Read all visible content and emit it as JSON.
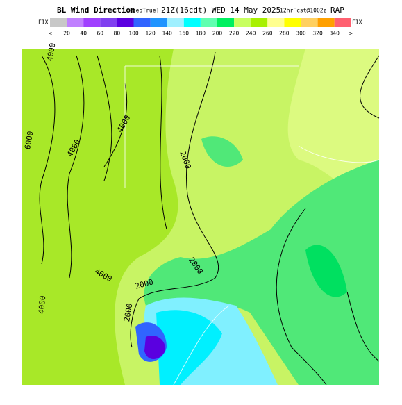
{
  "header": {
    "title": "BL Wind Direction",
    "units": "[degTrue]",
    "time": "21Z(16cdt) WED 14 May 2025",
    "forecast": "12hrFcst@1002z",
    "model": "RAP"
  },
  "colorbar": {
    "left_label": "FIX",
    "right_label": "FIX",
    "left_arrow": "<",
    "right_arrow": ">",
    "ticks": [
      20,
      40,
      60,
      80,
      100,
      120,
      140,
      160,
      180,
      200,
      220,
      240,
      260,
      280,
      300,
      320,
      340
    ],
    "colors": [
      "#c8c8c8",
      "#c080ff",
      "#a040ff",
      "#8040f0",
      "#5a00e0",
      "#3064ff",
      "#2094ff",
      "#a0f0ff",
      "#00ffff",
      "#60ffb0",
      "#00f060",
      "#c8ff60",
      "#a8f000",
      "#ffff90",
      "#ffff00",
      "#ffd060",
      "#ffa000",
      "#ff6070"
    ]
  },
  "contour_labels": [
    "6000",
    "4000",
    "4000",
    "2000",
    "2000",
    "2000",
    "4000",
    "2000",
    "4000",
    "4000"
  ]
}
